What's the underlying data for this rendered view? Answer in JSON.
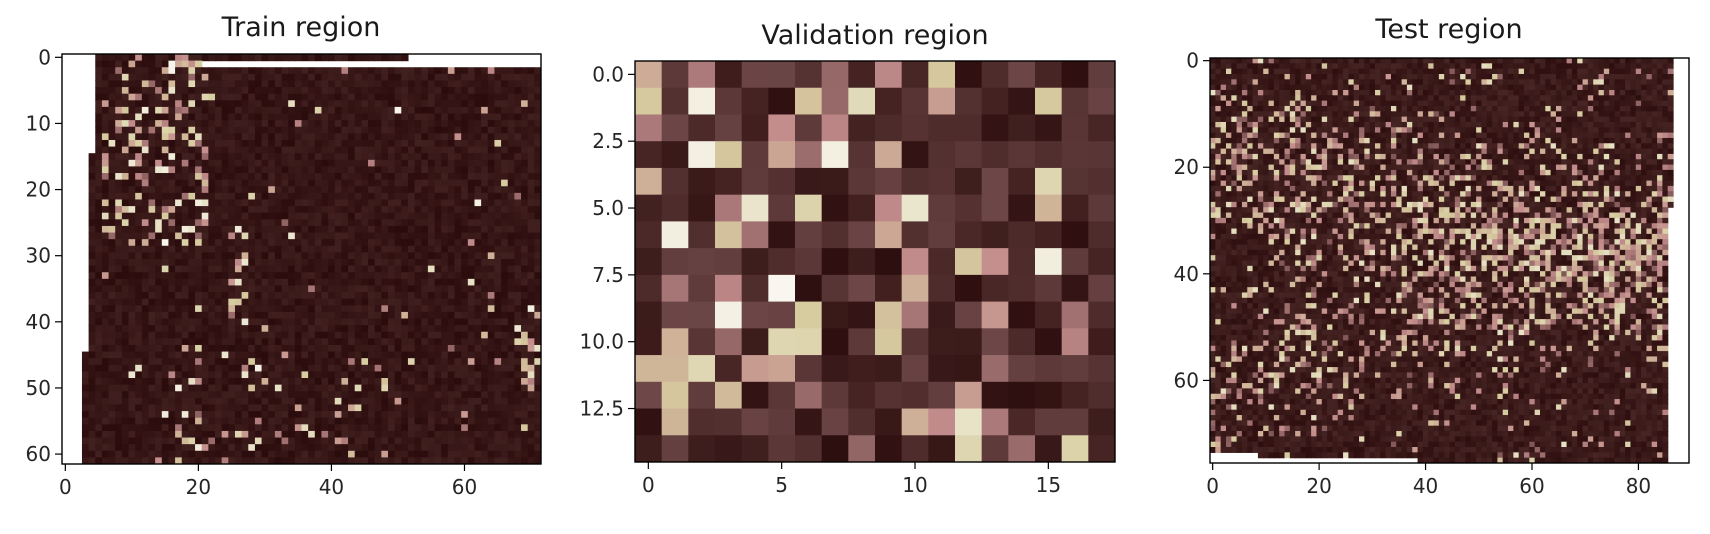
{
  "chart_data": [
    {
      "type": "heatmap",
      "title": "Train region",
      "colormap": "pink",
      "xlabel": "",
      "ylabel": "",
      "xlim": [
        -0.5,
        71.5
      ],
      "ylim": [
        61.5,
        -0.5
      ],
      "x_ticks": [
        0,
        20,
        40,
        60
      ],
      "y_ticks": [
        0,
        10,
        20,
        30,
        40,
        50,
        60
      ],
      "grid": false
    },
    {
      "type": "heatmap",
      "title": "Validation region",
      "colormap": "pink",
      "xlabel": "",
      "ylabel": "",
      "xlim": [
        -0.5,
        17.5
      ],
      "ylim": [
        14.5,
        -0.5
      ],
      "x_ticks": [
        0,
        5,
        10,
        15
      ],
      "y_ticks": [
        "0.0",
        "2.5",
        "5.0",
        "7.5",
        "10.0",
        "12.5"
      ],
      "grid": false
    },
    {
      "type": "heatmap",
      "title": "Test region",
      "colormap": "pink",
      "xlabel": "",
      "ylabel": "",
      "xlim": [
        -0.5,
        89.5
      ],
      "ylim": [
        75.5,
        -0.5
      ],
      "x_ticks": [
        0,
        20,
        40,
        60,
        80
      ],
      "y_ticks": [
        0,
        20,
        40,
        60
      ],
      "grid": false
    }
  ]
}
